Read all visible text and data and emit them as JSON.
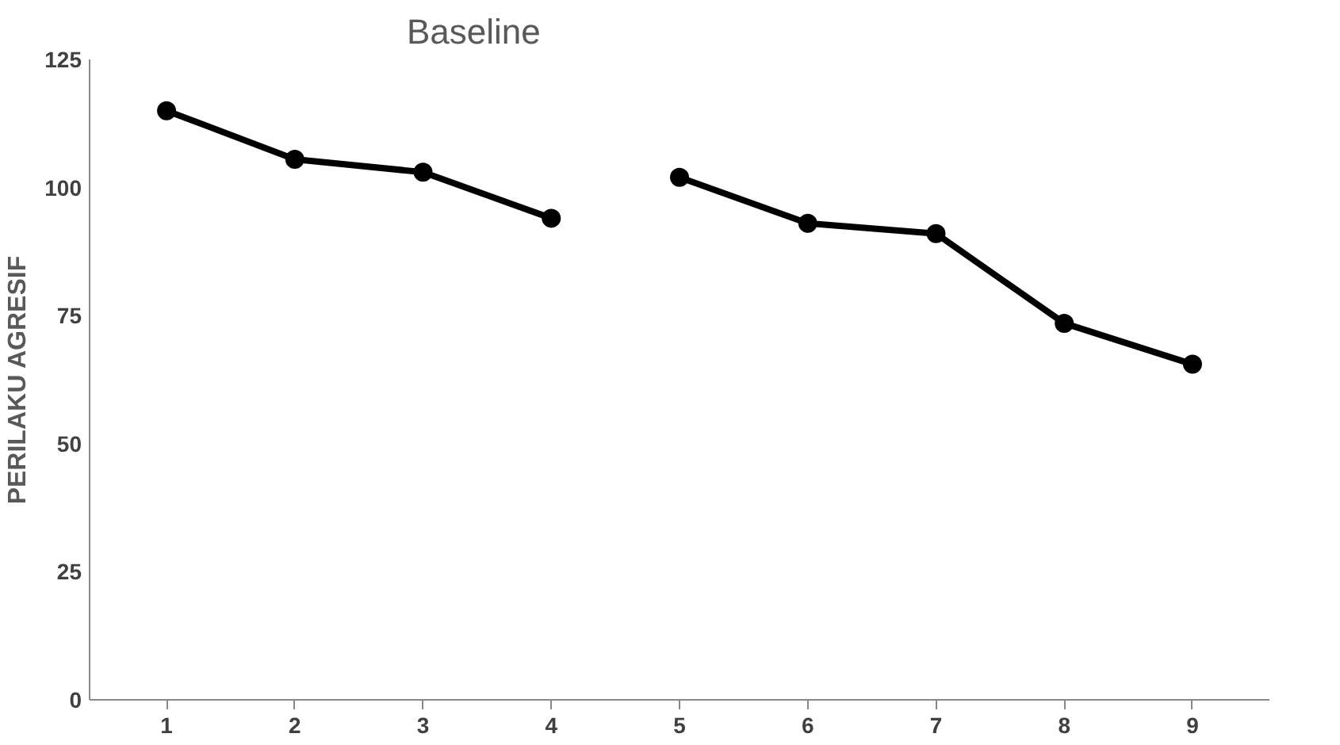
{
  "chart_data": {
    "type": "line",
    "title": "Baseline",
    "ylabel": "PERILAKU AGRESIF",
    "categories": [
      "1",
      "2",
      "3",
      "4",
      "5",
      "6",
      "7",
      "8",
      "9"
    ],
    "series": [
      {
        "color": "#000000",
        "values": [
          115,
          105.5,
          103,
          94,
          null,
          null,
          null,
          null,
          null
        ]
      },
      {
        "color": "#000000",
        "values": [
          null,
          null,
          null,
          null,
          102,
          93,
          91,
          73.5,
          65.5
        ]
      }
    ],
    "ylim": [
      0,
      125
    ],
    "yticks": [
      0,
      25,
      50,
      75,
      100,
      125
    ],
    "grid": false,
    "marker": "circle",
    "line_style": "solid"
  }
}
